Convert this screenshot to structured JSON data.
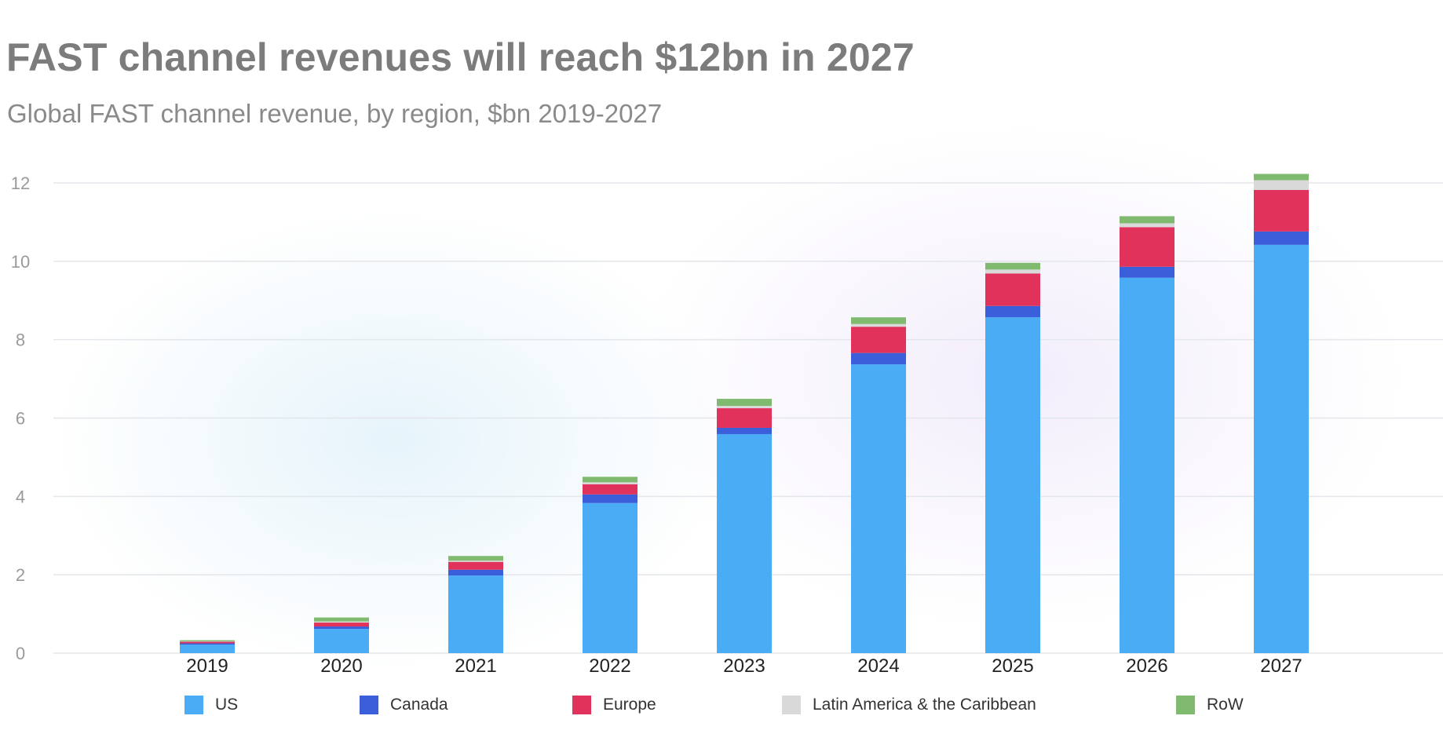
{
  "header": {
    "title": "FAST channel revenues will reach $12bn in 2027",
    "subtitle": "Global FAST channel revenue, by region, $bn 2019-2027"
  },
  "colors": {
    "US": "#4aacf5",
    "Canada": "#3b5fdb",
    "Europe": "#e0325a",
    "Latin America & the Caribbean": "#d9d9d9",
    "RoW": "#7fba6f",
    "grid": "#e3e6ea",
    "tick": "#9a9a9a",
    "xtick": "#222222"
  },
  "chart_data": {
    "type": "bar",
    "stacked": true,
    "title": "FAST channel revenues will reach $12bn in 2027",
    "subtitle": "Global FAST channel revenue, by region, $bn 2019-2027",
    "xlabel": "",
    "ylabel": "",
    "ylim": [
      0,
      12
    ],
    "yticks": [
      0,
      2,
      4,
      6,
      8,
      10,
      12
    ],
    "grid": true,
    "legend_position": "bottom",
    "categories": [
      "2019",
      "2020",
      "2021",
      "2022",
      "2023",
      "2024",
      "2025",
      "2026",
      "2027"
    ],
    "series": [
      {
        "name": "US",
        "values": [
          0.22,
          0.62,
          1.98,
          3.83,
          5.59,
          7.37,
          8.57,
          9.58,
          10.42
        ]
      },
      {
        "name": "Canada",
        "values": [
          0.03,
          0.06,
          0.15,
          0.22,
          0.16,
          0.29,
          0.29,
          0.28,
          0.34
        ]
      },
      {
        "name": "Europe",
        "values": [
          0.04,
          0.1,
          0.2,
          0.26,
          0.5,
          0.67,
          0.83,
          1.01,
          1.06
        ]
      },
      {
        "name": "Latin America & the Caribbean",
        "values": [
          0.01,
          0.03,
          0.03,
          0.05,
          0.06,
          0.07,
          0.1,
          0.1,
          0.25
        ]
      },
      {
        "name": "RoW",
        "values": [
          0.03,
          0.1,
          0.12,
          0.14,
          0.18,
          0.17,
          0.17,
          0.18,
          0.16
        ]
      }
    ]
  },
  "legend": {
    "items": [
      {
        "label": "US"
      },
      {
        "label": "Canada"
      },
      {
        "label": "Europe"
      },
      {
        "label": "Latin America & the Caribbean"
      },
      {
        "label": "RoW"
      }
    ]
  }
}
